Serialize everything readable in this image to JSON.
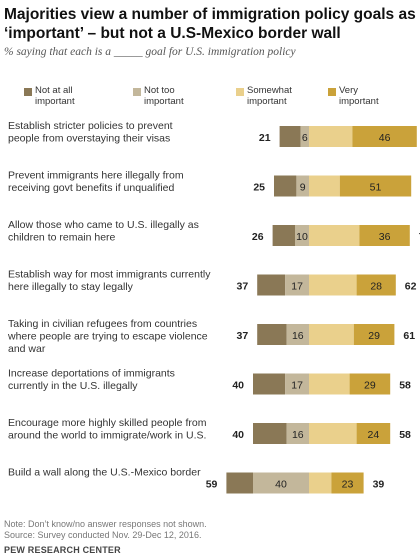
{
  "title": "Majorities view a number of immigration policy goals as ‘important’  – but not a U.S-Mexico border wall",
  "subtitle": "% saying that each is a _____ goal for U.S. immigration policy",
  "legend": [
    {
      "label": "Not at all important",
      "color": "#8a7856"
    },
    {
      "label": "Not too important",
      "color": "#c3b79b"
    },
    {
      "label": "Somewhat important",
      "color": "#ead08c"
    },
    {
      "label": "Very important",
      "color": "#caa23a"
    }
  ],
  "chart_data": {
    "type": "bar",
    "stacked": "diverging",
    "categories": [
      "Establish stricter policies to prevent people from overstaying their visas",
      "Prevent immigrants here illegally from receiving govt benefits if unqualified",
      "Allow those who came to U.S. illegally as children to remain here",
      "Establish way for most immigrants currently here illegally to stay legally",
      "Taking in civilian refugees from countries where people are trying to escape violence and war",
      "Increase deportations of immigrants currently in the U.S. illegally",
      "Encourage more highly skilled people from around the world to immigrate/work in U.S.",
      "Build a wall along the U.S.-Mexico border"
    ],
    "series": [
      {
        "name": "Not at all important",
        "values": [
          15,
          16,
          16,
          20,
          21,
          23,
          24,
          19
        ]
      },
      {
        "name": "Not too important",
        "values": [
          6,
          9,
          10,
          17,
          16,
          17,
          16,
          40
        ]
      },
      {
        "name": "Somewhat important",
        "values": [
          31,
          22,
          36,
          34,
          32,
          29,
          34,
          16
        ]
      },
      {
        "name": "Very important",
        "values": [
          46,
          51,
          36,
          28,
          29,
          29,
          24,
          23
        ]
      }
    ],
    "unimportant_totals": [
      21,
      25,
      26,
      37,
      37,
      40,
      40,
      59
    ],
    "important_totals": [
      77,
      73,
      72,
      62,
      61,
      58,
      58,
      39
    ],
    "inner_labels": {
      "not_at_all": [
        null,
        null,
        null,
        null,
        null,
        null,
        null,
        null
      ],
      "not_too": [
        6,
        9,
        10,
        17,
        16,
        17,
        16,
        40
      ],
      "somewhat": [
        null,
        null,
        null,
        null,
        null,
        null,
        null,
        null
      ],
      "very": [
        46,
        51,
        36,
        28,
        29,
        29,
        24,
        23
      ]
    }
  },
  "footer": {
    "note": "Note: Don’t know/no answer responses not shown.",
    "source": "Source: Survey conducted Nov. 29-Dec 12, 2016.",
    "brand": "PEW RESEARCH CENTER"
  }
}
